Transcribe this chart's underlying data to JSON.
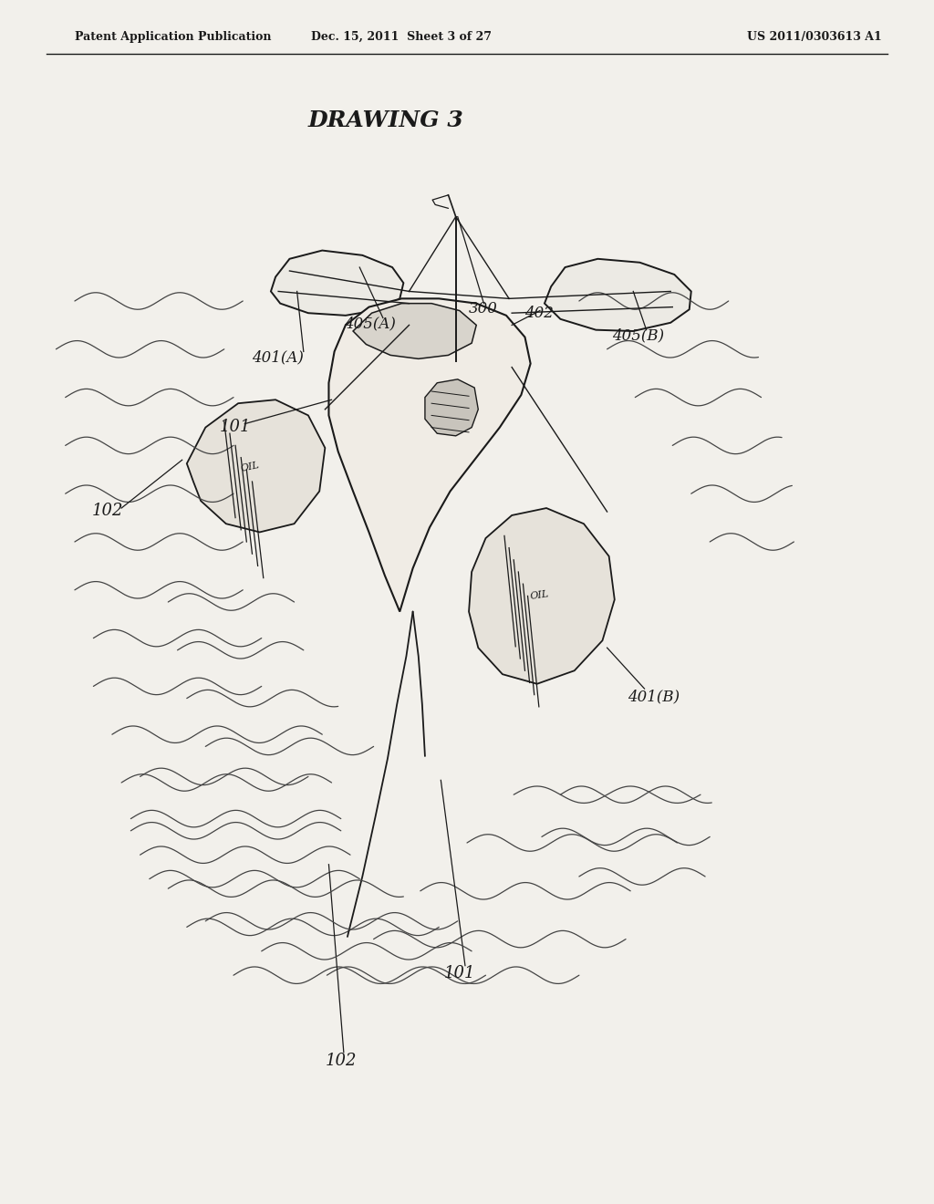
{
  "bg_color": "#f2f0eb",
  "line_color": "#1a1a1a",
  "header_left": "Patent Application Publication",
  "header_center": "Dec. 15, 2011  Sheet 3 of 27",
  "header_right": "US 2011/0303613 A1",
  "title": "DRAWING 3",
  "label_fontsize": 13,
  "header_fontsize": 9,
  "title_fontsize": 18
}
